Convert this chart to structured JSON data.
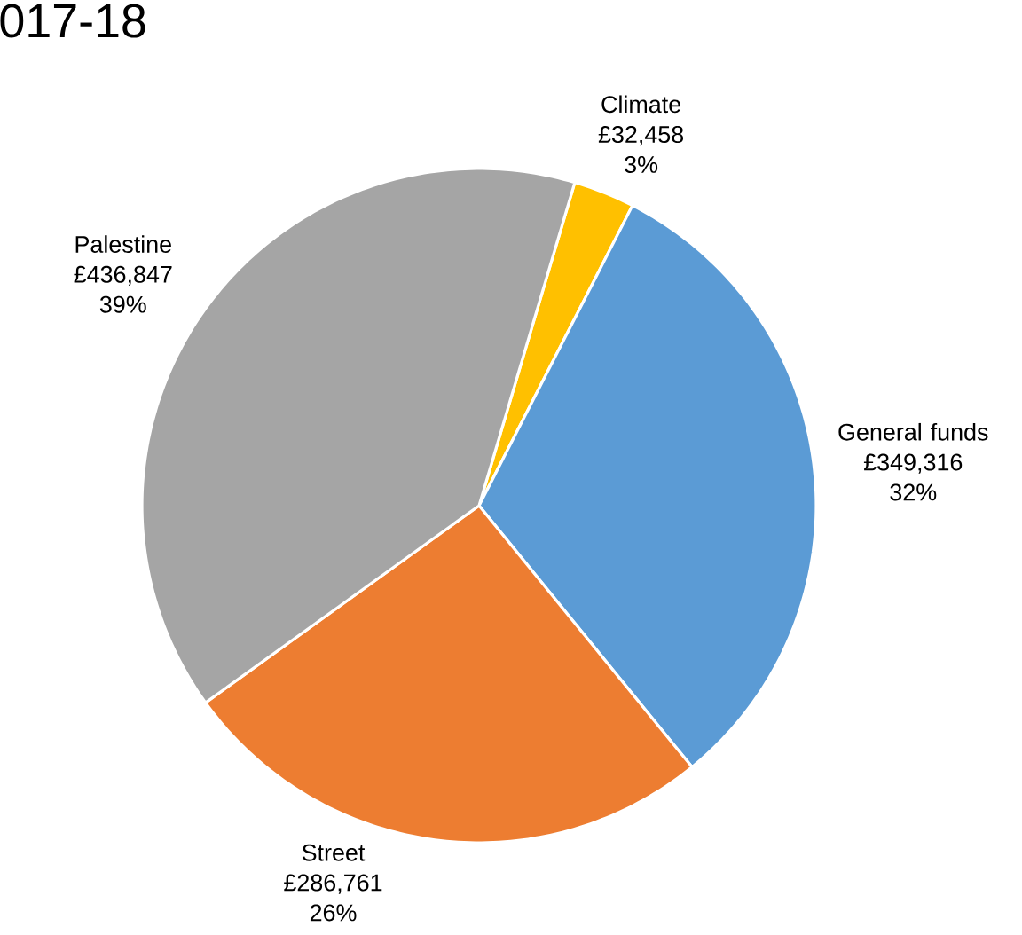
{
  "chart_data": {
    "type": "pie",
    "title": "017-18",
    "categories": [
      "Climate",
      "General funds",
      "Street",
      "Palestine"
    ],
    "values": [
      32458,
      349316,
      286761,
      436847
    ],
    "colors": [
      "#ffc000",
      "#5b9bd5",
      "#ed7d31",
      "#a5a5a5"
    ],
    "value_labels": [
      "£32,458",
      "£349,316",
      "£286,761",
      "£436,847"
    ],
    "annotations": [
      "3%",
      "32%",
      "26%",
      "39%"
    ]
  }
}
